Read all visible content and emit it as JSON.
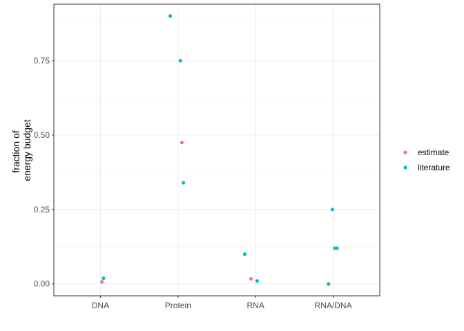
{
  "chart_data": {
    "type": "scatter",
    "title": "",
    "xlabel": "",
    "ylabel_lines": [
      "fraction of",
      "energy budget"
    ],
    "categories": [
      "DNA",
      "Protein",
      "RNA",
      "RNA/DNA"
    ],
    "y_ticks": [
      "0.00",
      "0.25",
      "0.50",
      "0.75"
    ],
    "ylim": [
      -0.04,
      0.94
    ],
    "grid": true,
    "legend_position": "right",
    "series": [
      {
        "name": "estimate",
        "color": "#F8766D",
        "points": [
          {
            "x": "DNA",
            "y": 0.007
          },
          {
            "x": "Protein",
            "y": 0.475
          },
          {
            "x": "RNA",
            "y": 0.017
          }
        ]
      },
      {
        "name": "literature",
        "color": "#00BFC4",
        "points": [
          {
            "x": "DNA",
            "y": 0.019
          },
          {
            "x": "Protein",
            "y": 0.9
          },
          {
            "x": "Protein",
            "y": 0.75
          },
          {
            "x": "Protein",
            "y": 0.34
          },
          {
            "x": "RNA",
            "y": 0.1
          },
          {
            "x": "RNA",
            "y": 0.01
          },
          {
            "x": "RNA/DNA",
            "y": 0.25
          },
          {
            "x": "RNA/DNA",
            "y": 0.12
          },
          {
            "x": "RNA/DNA",
            "y": 0.12
          },
          {
            "x": "RNA/DNA",
            "y": 0.0
          }
        ]
      }
    ]
  }
}
